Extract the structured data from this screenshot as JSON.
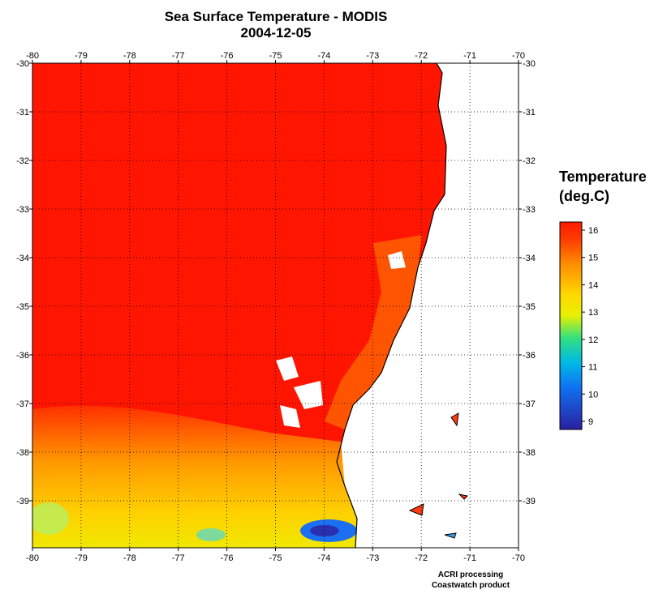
{
  "map": {
    "title": "Sea Surface Temperature - MODIS",
    "date": "2004-12-05",
    "lon_ticks": [
      "-80",
      "-79",
      "-78",
      "-77",
      "-76",
      "-75",
      "-74",
      "-73",
      "-72",
      "-71",
      "-70"
    ],
    "lat_ticks": [
      "-30",
      "-31",
      "-32",
      "-33",
      "-34",
      "-35",
      "-36",
      "-37",
      "-38",
      "-39"
    ],
    "lon_range": [
      -80,
      -70
    ],
    "lat_range": [
      -30,
      -40
    ],
    "grid": "dotted",
    "land_color": "#ffffff",
    "coastline_color": "#000000",
    "nodata_color": "#ffffff"
  },
  "legend": {
    "title_line1": "Temperature",
    "title_line2": "(deg.C)",
    "ticks": [
      "16",
      "15",
      "14",
      "13",
      "12",
      "11",
      "10",
      "9"
    ],
    "colors": {
      "high": "#ff1a00",
      "mid_high": "#ff8c00",
      "mid": "#ffff00",
      "low_mid": "#00e0c0",
      "low": "#0090ff",
      "lowest": "#2020a0"
    }
  },
  "credits": {
    "line1": "ACRI processing",
    "line2": "Coastwatch product"
  }
}
